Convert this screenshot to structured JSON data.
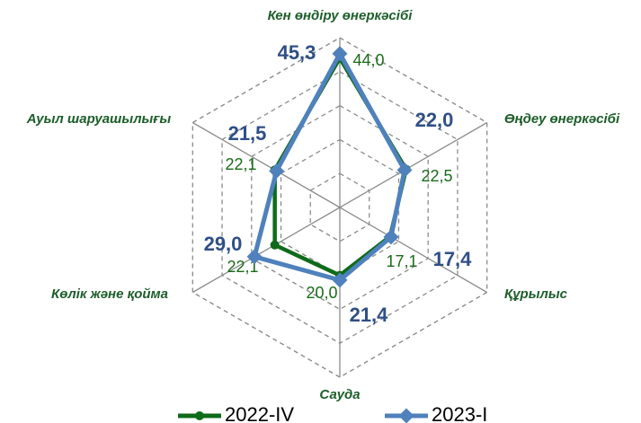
{
  "chart_data": {
    "type": "radar",
    "categories": [
      "Кен өндіру  өнеркәсібі",
      "Өңдеу өнеркәсібі",
      "Құрылыс",
      "Сауда",
      "Көлік және қойма",
      "Ауыл шаруашылығы"
    ],
    "series": [
      {
        "name": "2022-IV",
        "color": "#0e6b1a",
        "values": [
          44.0,
          22.5,
          17.1,
          20.0,
          22.1,
          22.1
        ],
        "value_labels": [
          "44,0",
          "22,5",
          "17,1",
          "20,0",
          "22,1",
          "22,1"
        ]
      },
      {
        "name": "2023-I",
        "color": "#4f81bd",
        "values": [
          45.3,
          22.0,
          17.4,
          21.4,
          29.0,
          21.5
        ],
        "value_labels": [
          "45,3",
          "22,0",
          "17,4",
          "21,4",
          "29,0",
          "21,5"
        ]
      }
    ],
    "ylim": [
      0,
      50
    ],
    "yticks": [
      0,
      10,
      20,
      30,
      40,
      50
    ],
    "grid": true
  }
}
